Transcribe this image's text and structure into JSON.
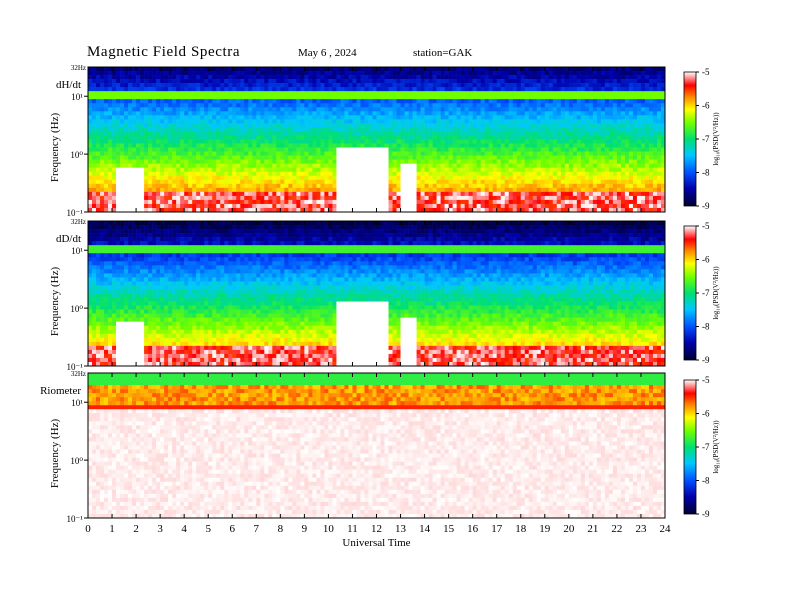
{
  "header": {
    "title": "Magnetic  Field  Spectra",
    "date": "May 6  , 2024",
    "station": "station=GAK"
  },
  "chart_data": [
    {
      "type": "heatmap",
      "panel_label": "dH/dt",
      "ylabel": "Frequency  (Hz)",
      "top_tick_label": "32Hz",
      "yticks": [
        {
          "value": 0.1,
          "label": "10⁻¹"
        },
        {
          "value": 1,
          "label": "10⁰"
        },
        {
          "value": 10,
          "label": "10¹"
        }
      ],
      "ylim": [
        0.1,
        32
      ],
      "yscale": "log",
      "xlim": [
        0,
        24
      ],
      "colorbar": {
        "label": "log₁₀(PSD(V²/Hz))",
        "range": [
          -9,
          -5
        ],
        "ticks": [
          "-5",
          "-6",
          "-7",
          "-8",
          "-9"
        ]
      }
    },
    {
      "type": "heatmap",
      "panel_label": "dD/dt",
      "ylabel": "Frequency  (Hz)",
      "top_tick_label": "32Hz",
      "yticks": [
        {
          "value": 0.1,
          "label": "10⁻¹"
        },
        {
          "value": 1,
          "label": "10⁰"
        },
        {
          "value": 10,
          "label": "10¹"
        }
      ],
      "ylim": [
        0.1,
        32
      ],
      "yscale": "log",
      "xlim": [
        0,
        24
      ],
      "colorbar": {
        "label": "log₁₀(PSD(V²/Hz))",
        "range": [
          -9,
          -5
        ],
        "ticks": [
          "-5",
          "-6",
          "-7",
          "-8",
          "-9"
        ]
      }
    },
    {
      "type": "heatmap",
      "panel_label": "Riometer",
      "ylabel": "Frequency  (Hz)",
      "top_tick_label": "32Hz",
      "yticks": [
        {
          "value": 0.1,
          "label": "10⁻¹"
        },
        {
          "value": 1,
          "label": "10⁰"
        },
        {
          "value": 10,
          "label": "10¹"
        }
      ],
      "ylim": [
        0.1,
        32
      ],
      "yscale": "log",
      "xlim": [
        0,
        24
      ],
      "xlabel": "Universal  Time",
      "xticks": [
        "0",
        "1",
        "2",
        "3",
        "4",
        "5",
        "6",
        "7",
        "8",
        "9",
        "10",
        "11",
        "12",
        "13",
        "14",
        "15",
        "16",
        "17",
        "18",
        "19",
        "20",
        "21",
        "22",
        "23",
        "24"
      ],
      "colorbar": {
        "label": "log₁₀(PSD(V²/Hz))",
        "range": [
          -9,
          -5
        ],
        "ticks": [
          "-5",
          "-6",
          "-7",
          "-8",
          "-9"
        ]
      }
    }
  ]
}
